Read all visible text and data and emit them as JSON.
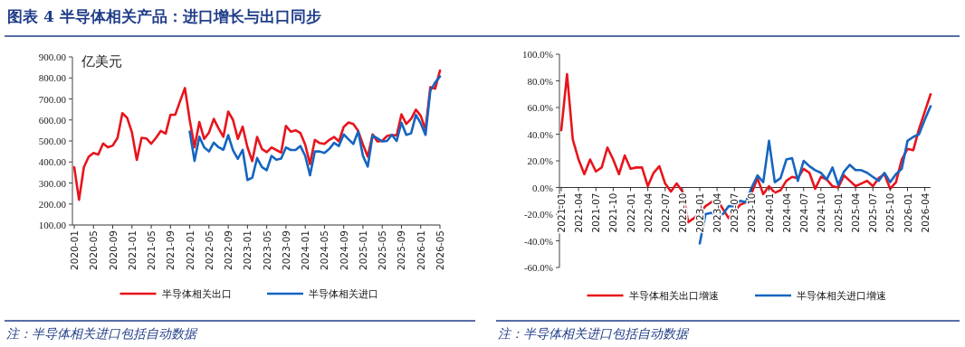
{
  "chart_data": [
    {
      "type": "line",
      "title": "图表 4   半导体相关产品：进口增长与出口同步",
      "ylabel": "亿美元",
      "legend": "bottom",
      "xlim": [
        "2020-01",
        "2026-05"
      ],
      "xticks": [
        "2020-01",
        "2020-05",
        "2020-09",
        "2021-01",
        "2021-05",
        "2021-09",
        "2022-01",
        "2022-05",
        "2022-09",
        "2023-01",
        "2023-05",
        "2023-09",
        "2024-01",
        "2024-05",
        "2024-09",
        "2025-01",
        "2025-05",
        "2025-09",
        "2026-01",
        "2026-05"
      ],
      "ylim": [
        100,
        900
      ],
      "yticks": [
        {
          "value": 100,
          "label": "100.00"
        },
        {
          "value": 200,
          "label": "200.00"
        },
        {
          "value": 300,
          "label": "300.00"
        },
        {
          "value": 400,
          "label": "400.00"
        },
        {
          "value": 500,
          "label": "500.00"
        },
        {
          "value": 600,
          "label": "600.00"
        },
        {
          "value": 700,
          "label": "700.00"
        },
        {
          "value": 800,
          "label": "800.00"
        },
        {
          "value": 900,
          "label": "900.00"
        }
      ],
      "x": [
        "2020-01",
        "2020-02",
        "2020-03",
        "2020-04",
        "2020-05",
        "2020-06",
        "2020-07",
        "2020-08",
        "2020-09",
        "2020-10",
        "2020-11",
        "2020-12",
        "2021-01",
        "2021-02",
        "2021-03",
        "2021-04",
        "2021-05",
        "2021-06",
        "2021-07",
        "2021-08",
        "2021-09",
        "2021-10",
        "2021-11",
        "2021-12",
        "2022-01",
        "2022-02",
        "2022-03",
        "2022-04",
        "2022-05",
        "2022-06",
        "2022-07",
        "2022-08",
        "2022-09",
        "2022-10",
        "2022-11",
        "2022-12",
        "2023-01",
        "2023-02",
        "2023-03",
        "2023-04",
        "2023-05",
        "2023-06",
        "2023-07",
        "2023-08",
        "2023-09",
        "2023-10",
        "2023-11",
        "2023-12",
        "2024-01",
        "2024-02",
        "2024-03",
        "2024-04",
        "2024-05",
        "2024-06",
        "2024-07",
        "2024-08",
        "2024-09",
        "2024-10",
        "2024-11",
        "2024-12",
        "2025-01",
        "2025-02",
        "2025-03",
        "2025-04",
        "2025-05",
        "2025-06",
        "2025-07",
        "2025-08",
        "2025-09",
        "2025-10",
        "2025-11",
        "2025-12",
        "2026-01",
        "2026-02",
        "2026-03",
        "2026-04",
        "2026-05"
      ],
      "series": [
        {
          "name": "半导体相关出口",
          "color": "#e8141c",
          "values": [
            375,
            220,
            375,
            425,
            443,
            435,
            488,
            470,
            478,
            515,
            632,
            610,
            540,
            410,
            515,
            512,
            487,
            515,
            548,
            535,
            625,
            625,
            690,
            752,
            600,
            470,
            590,
            510,
            540,
            605,
            560,
            520,
            640,
            600,
            510,
            568,
            470,
            404,
            519,
            462,
            447,
            469,
            457,
            445,
            572,
            544,
            551,
            538,
            483,
            390,
            505,
            490,
            486,
            505,
            519,
            498,
            567,
            588,
            581,
            548,
            483,
            426,
            531,
            498,
            500,
            524,
            529,
            526,
            627,
            581,
            605,
            649,
            620,
            555,
            756,
            749,
            835
          ]
        },
        {
          "name": "半导体相关进口",
          "color": "#1565c0",
          "values": [
            null,
            null,
            null,
            null,
            null,
            null,
            null,
            null,
            null,
            null,
            null,
            null,
            null,
            null,
            null,
            null,
            null,
            null,
            null,
            null,
            null,
            null,
            null,
            null,
            545,
            405,
            520,
            470,
            450,
            492,
            470,
            458,
            528,
            455,
            415,
            458,
            314,
            325,
            419,
            376,
            361,
            429,
            411,
            416,
            469,
            457,
            457,
            476,
            429,
            337,
            450,
            450,
            443,
            462,
            491,
            476,
            531,
            508,
            486,
            545,
            429,
            378,
            526,
            512,
            498,
            500,
            529,
            500,
            587,
            529,
            536,
            624,
            584,
            529,
            739,
            778,
            807
          ]
        }
      ],
      "annotations": [
        "注：半导体相关进口包括自动数据"
      ]
    },
    {
      "type": "line",
      "legend": "bottom",
      "xlim": [
        "2021-01",
        "2026-05"
      ],
      "xticks": [
        "2021-01",
        "2021-04",
        "2021-07",
        "2021-10",
        "2022-01",
        "2022-04",
        "2022-07",
        "2022-10",
        "2023-01",
        "2023-04",
        "2023-07",
        "2023-10",
        "2024-01",
        "2024-04",
        "2024-07",
        "2024-10",
        "2025-01",
        "2025-04",
        "2025-07",
        "2025-10",
        "2026-01",
        "2026-04"
      ],
      "ylim": [
        -60,
        100
      ],
      "yticks": [
        {
          "value": -60,
          "label": "-60.0%"
        },
        {
          "value": -40,
          "label": "-40.0%"
        },
        {
          "value": -20,
          "label": "-20.0%"
        },
        {
          "value": 0,
          "label": "0.0%"
        },
        {
          "value": 20,
          "label": "20.0%"
        },
        {
          "value": 40,
          "label": "40.0%"
        },
        {
          "value": 60,
          "label": "60.0%"
        },
        {
          "value": 80,
          "label": "80.0%"
        },
        {
          "value": 100,
          "label": "100.0%"
        }
      ],
      "x": [
        "2021-01",
        "2021-02",
        "2021-03",
        "2021-04",
        "2021-05",
        "2021-06",
        "2021-07",
        "2021-08",
        "2021-09",
        "2021-10",
        "2021-11",
        "2021-12",
        "2022-01",
        "2022-02",
        "2022-03",
        "2022-04",
        "2022-05",
        "2022-06",
        "2022-07",
        "2022-08",
        "2022-09",
        "2022-10",
        "2022-11",
        "2022-12",
        "2023-01",
        "2023-02",
        "2023-03",
        "2023-04",
        "2023-05",
        "2023-06",
        "2023-07",
        "2023-08",
        "2023-09",
        "2023-10",
        "2023-11",
        "2023-12",
        "2024-01",
        "2024-02",
        "2024-03",
        "2024-04",
        "2024-05",
        "2024-06",
        "2024-07",
        "2024-08",
        "2024-09",
        "2024-10",
        "2024-11",
        "2024-12",
        "2025-01",
        "2025-02",
        "2025-03",
        "2025-04",
        "2025-05",
        "2025-06",
        "2025-07",
        "2025-08",
        "2025-09",
        "2025-10",
        "2025-11",
        "2025-12",
        "2026-01",
        "2026-02",
        "2026-03",
        "2026-04",
        "2026-05"
      ],
      "series": [
        {
          "name": "半导体相关出口增速",
          "color": "#e8141c",
          "values": [
            43,
            85,
            36,
            21,
            10,
            21,
            12,
            15,
            30,
            21,
            10,
            24,
            14,
            15,
            15,
            1,
            11,
            16,
            3,
            -3,
            3,
            -3,
            -26,
            -23,
            -19,
            -14,
            -11,
            -9,
            -16,
            -23,
            -18,
            -13,
            -11,
            -4,
            7,
            -5,
            1,
            -4,
            -2,
            5,
            8,
            7,
            14,
            11,
            -1,
            8,
            6,
            1,
            0,
            9,
            5,
            1,
            3,
            5,
            1,
            7,
            10,
            -1,
            4,
            21,
            29,
            28,
            44,
            57,
            70
          ]
        },
        {
          "name": "半导体相关进口增速",
          "color": "#1565c0",
          "values": [
            null,
            null,
            null,
            null,
            null,
            null,
            null,
            null,
            null,
            null,
            null,
            null,
            null,
            null,
            null,
            null,
            null,
            null,
            null,
            null,
            null,
            null,
            null,
            null,
            -42,
            -20,
            -19,
            -21,
            -20,
            -14,
            -14,
            -10,
            -11,
            0,
            9,
            4,
            35,
            4,
            7,
            21,
            22,
            5,
            20,
            16,
            13,
            11,
            6,
            15,
            2,
            12,
            17,
            13,
            13,
            11,
            8,
            5,
            11,
            4,
            10,
            14,
            35,
            38,
            40,
            51,
            61
          ]
        }
      ],
      "annotations": [
        "注：半导体相关进口包括自动数据"
      ]
    }
  ]
}
